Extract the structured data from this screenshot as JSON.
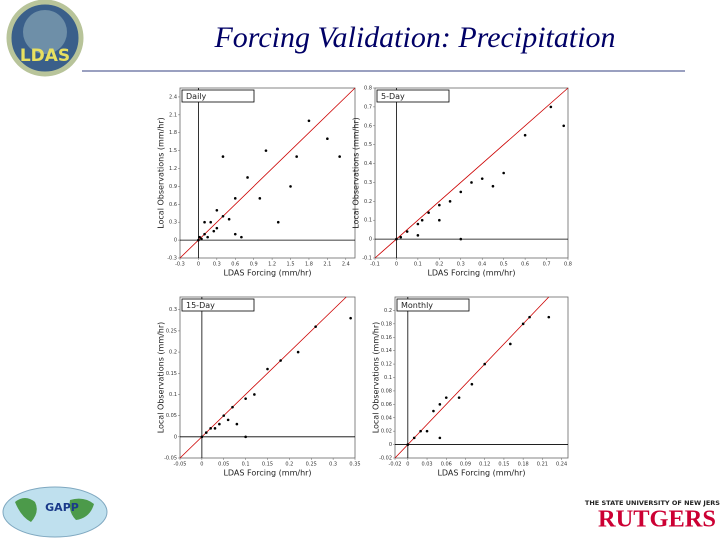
{
  "slide": {
    "title": "Forcing Validation: Precipitation",
    "logo_left": "LDAS",
    "logo_bottom_left": "GAPP",
    "logo_right_top": "THE STATE UNIVERSITY OF NEW JERSEY",
    "logo_right": "RUTGERS"
  },
  "chart_data": [
    {
      "type": "scatter",
      "title": "Daily",
      "xlabel": "LDAS Forcing (mm/hr)",
      "ylabel": "Local Observations (mm/hr)",
      "color": "#000000",
      "reference_line_color": "#cc0000",
      "x": [
        0,
        0.02,
        0.05,
        0.1,
        0.15,
        0.2,
        0.3,
        0.4,
        0.5,
        0.6,
        0.3,
        0.4,
        0.8,
        0.6,
        1.0,
        1.3,
        1.1,
        1.5,
        1.6,
        1.8,
        2.1,
        2.3,
        0.25,
        0.7,
        0.1
      ],
      "values": [
        0,
        0.05,
        0.02,
        0.1,
        0.05,
        0.3,
        0.2,
        0.4,
        0.35,
        0.7,
        0.5,
        1.4,
        1.05,
        0.1,
        0.7,
        0.3,
        1.5,
        0.9,
        1.4,
        2.0,
        1.7,
        1.4,
        0.15,
        0.05,
        0.3
      ],
      "xlim": [
        -0.3,
        2.55
      ],
      "ylim": [
        -0.3,
        2.55
      ],
      "xticks": [
        -0.3,
        0,
        0.3,
        0.6,
        0.9,
        1.2,
        1.5,
        1.8,
        2.1,
        2.4
      ],
      "yticks": [
        -0.3,
        0,
        0.3,
        0.6,
        0.9,
        1.2,
        1.5,
        1.8,
        2.1,
        2.4
      ]
    },
    {
      "type": "scatter",
      "title": "5-Day",
      "xlabel": "LDAS Forcing (mm/hr)",
      "ylabel": "Local Observations (mm/hr)",
      "color": "#000000",
      "reference_line_color": "#cc0000",
      "x": [
        0,
        0.02,
        0.05,
        0.1,
        0.12,
        0.15,
        0.2,
        0.25,
        0.3,
        0.35,
        0.4,
        0.45,
        0.5,
        0.3,
        0.6,
        0.72,
        0.78,
        0.2,
        0.1
      ],
      "values": [
        0,
        0.01,
        0.04,
        0.08,
        0.1,
        0.14,
        0.18,
        0.2,
        0.25,
        0.3,
        0.32,
        0.28,
        0.35,
        0,
        0.55,
        0.7,
        0.6,
        0.1,
        0.02
      ],
      "xlim": [
        -0.1,
        0.8
      ],
      "ylim": [
        -0.1,
        0.8
      ],
      "xticks": [
        -0.1,
        0,
        0.1,
        0.2,
        0.3,
        0.4,
        0.5,
        0.6,
        0.7,
        0.8
      ],
      "yticks": [
        -0.1,
        0,
        0.1,
        0.2,
        0.3,
        0.4,
        0.5,
        0.6,
        0.7,
        0.8
      ]
    },
    {
      "type": "scatter",
      "title": "15-Day",
      "xlabel": "LDAS Forcing (mm/hr)",
      "ylabel": "Local Observations (mm/hr)",
      "color": "#000000",
      "reference_line_color": "#cc0000",
      "x": [
        0,
        0.01,
        0.02,
        0.03,
        0.04,
        0.05,
        0.06,
        0.07,
        0.1,
        0.1,
        0.12,
        0.15,
        0.18,
        0.22,
        0.26,
        0.34,
        0.08
      ],
      "values": [
        0,
        0.01,
        0.02,
        0.02,
        0.03,
        0.05,
        0.04,
        0.07,
        0.09,
        0,
        0.1,
        0.16,
        0.18,
        0.2,
        0.26,
        0.28,
        0.03
      ],
      "xlim": [
        -0.05,
        0.35
      ],
      "ylim": [
        -0.05,
        0.33
      ],
      "xticks": [
        -0.05,
        0,
        0.05,
        0.1,
        0.15,
        0.2,
        0.25,
        0.3,
        0.35
      ],
      "yticks": [
        -0.05,
        0,
        0.05,
        0.1,
        0.15,
        0.2,
        0.25,
        0.3
      ]
    },
    {
      "type": "scatter",
      "title": "Monthly",
      "xlabel": "LDAS Forcing (mm/hr)",
      "ylabel": "Local Observations (mm/hr)",
      "color": "#000000",
      "reference_line_color": "#cc0000",
      "x": [
        0,
        0.01,
        0.02,
        0.03,
        0.04,
        0.05,
        0.06,
        0.05,
        0.08,
        0.1,
        0.12,
        0.16,
        0.18,
        0.19,
        0.22
      ],
      "values": [
        0,
        0.01,
        0.02,
        0.02,
        0.05,
        0.06,
        0.07,
        0.01,
        0.07,
        0.09,
        0.12,
        0.15,
        0.18,
        0.19,
        0.19
      ],
      "xlim": [
        -0.02,
        0.25
      ],
      "ylim": [
        -0.02,
        0.22
      ],
      "xticks": [
        -0.02,
        0,
        0.03,
        0.06,
        0.09,
        0.12,
        0.15,
        0.18,
        0.21,
        0.24
      ],
      "yticks": [
        -0.02,
        0,
        0.02,
        0.04,
        0.06,
        0.08,
        0.1,
        0.12,
        0.14,
        0.16,
        0.18,
        0.2
      ]
    }
  ]
}
